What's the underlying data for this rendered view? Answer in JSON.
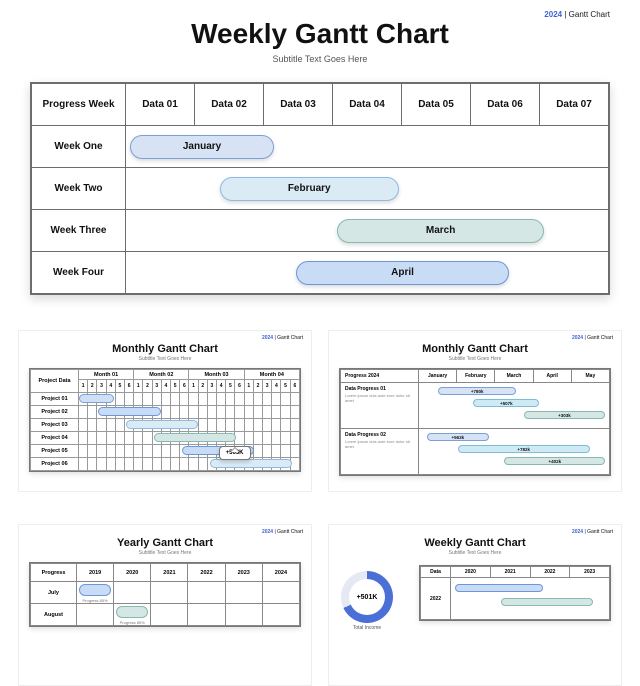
{
  "tag": {
    "year": "2024",
    "label": "Gantt Chart"
  },
  "title": "Weekly Gantt Chart",
  "subtitle": "Subtitle Text Goes Here",
  "colors": {
    "border": "#6d6d6d",
    "accent": "#3f63d6",
    "bar1_fill": "#d7e3f4",
    "bar1_stroke": "#7aa0d8",
    "bar2_fill": "#dbebf6",
    "bar2_stroke": "#8fb9de",
    "bar3_fill": "#d4e7e4",
    "bar3_stroke": "#86b9b0",
    "bar4_fill": "#c9dcf5",
    "bar4_stroke": "#6d96d8",
    "shadow": "rgba(0,0,0,.15)"
  },
  "gantt": {
    "row_header": "Progress Week",
    "columns": [
      "Data 01",
      "Data 02",
      "Data 03",
      "Data 04",
      "Data 05",
      "Data 06",
      "Data 07"
    ],
    "rows": [
      {
        "label": "Week One",
        "bar": {
          "text": "January",
          "start_col": 0,
          "span_cols": 2.2,
          "fill": "#d7e3f4",
          "stroke": "#7aa0d8"
        }
      },
      {
        "label": "Week Two",
        "bar": {
          "text": "February",
          "start_col": 1.3,
          "span_cols": 2.7,
          "fill": "#dbebf6",
          "stroke": "#8fb9de"
        }
      },
      {
        "label": "Week Three",
        "bar": {
          "text": "March",
          "start_col": 3.0,
          "span_cols": 3.1,
          "fill": "#d4e7e4",
          "stroke": "#86b9b0"
        }
      },
      {
        "label": "Week Four",
        "bar": {
          "text": "April",
          "start_col": 2.4,
          "span_cols": 3.2,
          "fill": "#c9dcf5",
          "stroke": "#6d96d8"
        }
      }
    ],
    "col_count": 7
  },
  "thumb1": {
    "title": "Monthly Gantt Chart",
    "subtitle": "Subtitle Text Goes Here",
    "tag": {
      "year": "2024",
      "label": "Gantt Chart"
    },
    "row_header": "Project Data",
    "month_groups": [
      "Month 01",
      "Month 02",
      "Month 03",
      "Month 04"
    ],
    "sub_per_month": 6,
    "rows": [
      "Project 01",
      "Project 02",
      "Project 03",
      "Project 04",
      "Project 05",
      "Project 06"
    ],
    "bars": [
      {
        "row": 0,
        "start": 0,
        "span": 4,
        "fill": "#cfe0f6",
        "stroke": "#7aa0d8"
      },
      {
        "row": 1,
        "start": 2,
        "span": 7,
        "fill": "#c9dcf5",
        "stroke": "#6d96d8"
      },
      {
        "row": 2,
        "start": 5,
        "span": 8,
        "fill": "#dbebf6",
        "stroke": "#8fb9de"
      },
      {
        "row": 3,
        "start": 8,
        "span": 9,
        "fill": "#d4e7e4",
        "stroke": "#86b9b0"
      },
      {
        "row": 4,
        "start": 11,
        "span": 8,
        "fill": "#c9dcf5",
        "stroke": "#6d96d8"
      },
      {
        "row": 5,
        "start": 14,
        "span": 9,
        "fill": "#dbebf6",
        "stroke": "#8fb9de"
      }
    ],
    "callout": {
      "text": "+563K",
      "sub": "Lorem Ipsum",
      "row": 3,
      "col": 17
    }
  },
  "thumb2": {
    "title": "Monthly Gantt Chart",
    "subtitle": "Subtitle Text Goes Here",
    "tag": {
      "year": "2024",
      "label": "Gantt Chart"
    },
    "row_header": "Progress 2024",
    "columns": [
      "January",
      "February",
      "March",
      "April",
      "May"
    ],
    "rows": [
      {
        "label": "Data Progress 01",
        "desc": "Lorem ipsum duis aute irure dolor sit amet",
        "pills": [
          {
            "start": 0.5,
            "span": 2.0,
            "text": "+780k",
            "fill": "#d7e3f4",
            "stroke": "#7aa0d8",
            "y": 4
          },
          {
            "start": 1.4,
            "span": 1.7,
            "text": "+507k",
            "fill": "#cdeaf5",
            "stroke": "#7fbcd6",
            "y": 16
          },
          {
            "start": 2.7,
            "span": 2.1,
            "text": "+303k",
            "fill": "#d4e7e4",
            "stroke": "#86b9b0",
            "y": 28
          }
        ]
      },
      {
        "label": "Data Progress 02",
        "desc": "Lorem ipsum duis aute irure dolor sit amet",
        "pills": [
          {
            "start": 0.2,
            "span": 1.6,
            "text": "+563k",
            "fill": "#d7e3f4",
            "stroke": "#7aa0d8",
            "y": 4
          },
          {
            "start": 1.0,
            "span": 3.4,
            "text": "+782k",
            "fill": "#cdeaf5",
            "stroke": "#7fbcd6",
            "y": 16
          },
          {
            "start": 2.2,
            "span": 2.6,
            "text": "+402k",
            "fill": "#d4e7e4",
            "stroke": "#86b9b0",
            "y": 28
          }
        ]
      }
    ]
  },
  "thumb3": {
    "title": "Yearly Gantt Chart",
    "subtitle": "Subtitle Text Goes Here",
    "tag": {
      "year": "2024",
      "label": "Gantt Chart"
    },
    "row_header": "Progress",
    "years": [
      "2019",
      "2020",
      "2021",
      "2022",
      "2023",
      "2024"
    ],
    "rows": [
      {
        "label": "July",
        "year_idx": 0,
        "sub": "Progress 85%",
        "fill": "#c9dcf5",
        "stroke": "#6d96d8"
      },
      {
        "label": "August",
        "year_idx": 1,
        "sub": "Progress 85%",
        "fill": "#d4e7e4",
        "stroke": "#86b9b0"
      }
    ]
  },
  "thumb4": {
    "title": "Weekly Gantt Chart",
    "subtitle": "Subtitle Text Goes Here",
    "tag": {
      "year": "2024",
      "label": "Gantt Chart"
    },
    "donut": {
      "percent": 68,
      "value": "+501K",
      "label": "Total Income",
      "fill": "#4a6fd6",
      "track": "#e4e9f4"
    },
    "row_header": "Data",
    "columns": [
      "2020",
      "2021",
      "2022",
      "2023"
    ],
    "rows": [
      {
        "label": "2022"
      }
    ],
    "pills": [
      {
        "start": 0.1,
        "span": 2.3,
        "fill": "#c9dcf5",
        "stroke": "#6d96d8",
        "y": 6
      },
      {
        "start": 1.3,
        "span": 2.4,
        "fill": "#d4e7e4",
        "stroke": "#86b9b0",
        "y": 20
      }
    ]
  }
}
